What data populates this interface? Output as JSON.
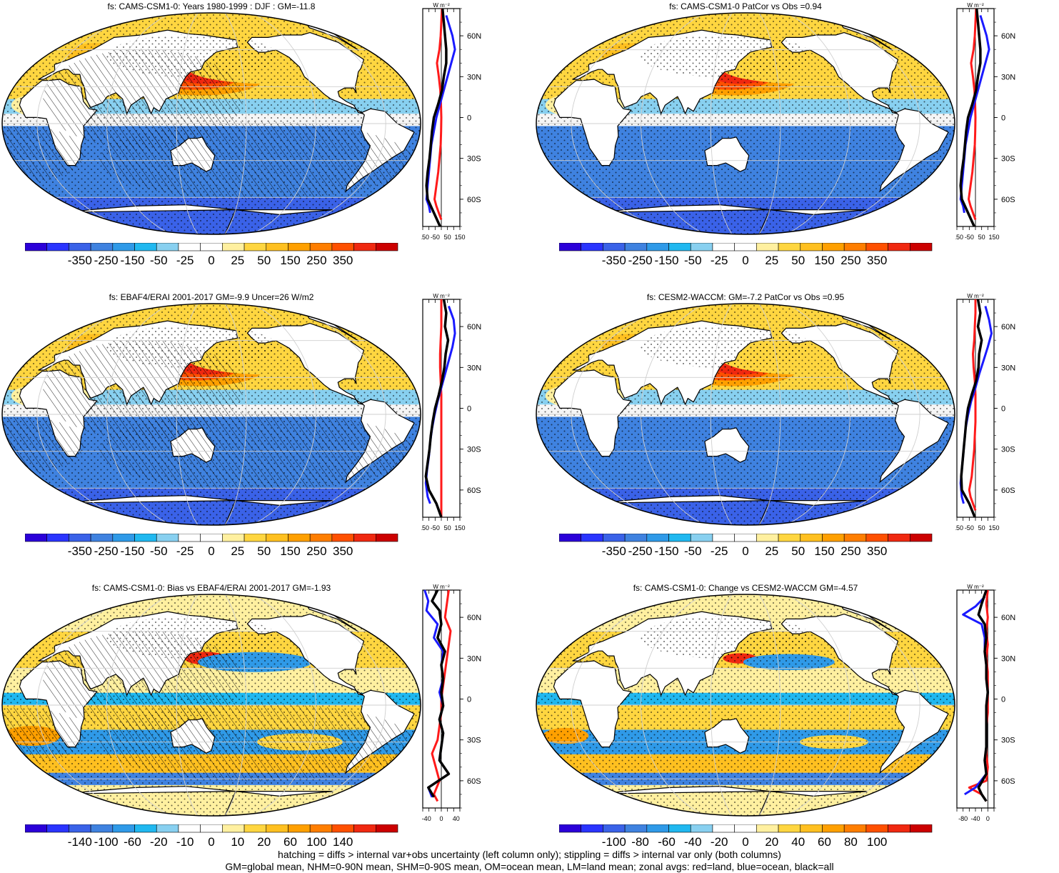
{
  "panels": [
    {
      "title": "fs: CAMS-CSM1-0: Years 1980-1999 : DJF : GM=-11.8",
      "colorbar_labels": [
        "-350",
        "-250",
        "-150",
        "-50",
        "-25",
        "0",
        "25",
        "50",
        "150",
        "250",
        "350"
      ],
      "zonal_xticks": [
        "-150",
        "-50",
        "50",
        "150"
      ],
      "zonal_xrange": [
        -150,
        150
      ],
      "hatching": true,
      "mode": "mean",
      "feature_scale": 1.0
    },
    {
      "title": "fs: CAMS-CSM1-0 PatCor vs Obs =0.94",
      "colorbar_labels": [
        "-350",
        "-250",
        "-150",
        "-50",
        "-25",
        "0",
        "25",
        "50",
        "150",
        "250",
        "350"
      ],
      "zonal_xticks": [
        "-150",
        "-50",
        "50",
        "150"
      ],
      "zonal_xrange": [
        -150,
        150
      ],
      "hatching": false,
      "mode": "mean",
      "feature_scale": 1.0
    },
    {
      "title": "fs: EBAF4/ERAI 2001-2017 GM=-9.9 Uncer=26 W/m2",
      "colorbar_labels": [
        "-350",
        "-250",
        "-150",
        "-50",
        "-25",
        "0",
        "25",
        "50",
        "150",
        "250",
        "350"
      ],
      "zonal_xticks": [
        "-150",
        "-50",
        "50",
        "150"
      ],
      "zonal_xrange": [
        -150,
        150
      ],
      "hatching": true,
      "mode": "mean",
      "feature_scale": 1.0
    },
    {
      "title": "fs: CESM2-WACCM: GM=-7.2 PatCor vs Obs =0.95",
      "colorbar_labels": [
        "-350",
        "-250",
        "-150",
        "-50",
        "-25",
        "0",
        "25",
        "50",
        "150",
        "250",
        "350"
      ],
      "zonal_xticks": [
        "-150",
        "-50",
        "50",
        "150"
      ],
      "zonal_xrange": [
        -150,
        150
      ],
      "hatching": false,
      "mode": "mean",
      "feature_scale": 1.0
    },
    {
      "title": "fs: CAMS-CSM1-0: Bias vs EBAF4/ERAI 2001-2017 GM=-1.93",
      "colorbar_labels": [
        "-140",
        "-100",
        "-60",
        "-20",
        "-10",
        "0",
        "10",
        "20",
        "60",
        "100",
        "140"
      ],
      "zonal_xticks": [
        "-40",
        "0",
        "40"
      ],
      "zonal_xrange": [
        -50,
        50
      ],
      "hatching": true,
      "mode": "diff",
      "feature_scale": 1.0
    },
    {
      "title": "fs: CAMS-CSM1-0: Change vs CESM2-WACCM GM=-4.57",
      "colorbar_labels": [
        "-100",
        "-80",
        "-60",
        "-40",
        "-20",
        "0",
        "20",
        "40",
        "60",
        "80",
        "100"
      ],
      "zonal_xticks": [
        "-80",
        "-40",
        "0"
      ],
      "zonal_xrange": [
        -100,
        20
      ],
      "hatching": false,
      "mode": "diff",
      "feature_scale": 0.8
    }
  ],
  "zonal_header": "W m⁻²",
  "lat_labels": [
    "60N",
    "30N",
    "0",
    "30S",
    "60S"
  ],
  "palette": [
    "#2b00d9",
    "#2a34ff",
    "#3a62e8",
    "#3f82e0",
    "#2f9ae8",
    "#20b8f0",
    "#88d0f0",
    "#ffffff",
    "#ffffff",
    "#fff0a0",
    "#ffd640",
    "#ffc020",
    "#ffa000",
    "#ff7e00",
    "#ff5000",
    "#f02810",
    "#cc0000"
  ],
  "line_colors": {
    "land": "#ff1a1a",
    "ocean": "#1a1aff",
    "all": "#000000"
  },
  "chart_data": [
    {
      "type": "line",
      "title": "fs: CAMS-CSM1-0: Years 1980-1999 : DJF : GM=-11.8",
      "xlabel": "W m⁻²",
      "xlim": [
        -150,
        150
      ],
      "y_tick_labels": [
        "60N",
        "30N",
        "0",
        "30S",
        "60S"
      ],
      "series": [
        {
          "name": "red=land",
          "lat": [
            80,
            70,
            60,
            50,
            40,
            30,
            20,
            10,
            0,
            -10,
            -20,
            -30,
            -40,
            -50,
            -60,
            -65,
            -70,
            -75
          ],
          "values": [
            5,
            0,
            -5,
            -15,
            -35,
            -20,
            -8,
            -3,
            0,
            -2,
            -5,
            -15,
            -25,
            -40,
            -55,
            -40,
            -20,
            0
          ]
        },
        {
          "name": "blue=ocean",
          "lat": [
            75,
            60,
            50,
            40,
            30,
            20,
            10,
            0,
            -10,
            -20,
            -30,
            -40,
            -50,
            -60,
            -65,
            -70
          ],
          "values": [
            40,
            90,
            110,
            80,
            50,
            20,
            -10,
            -40,
            -60,
            -80,
            -90,
            -100,
            -110,
            -120,
            -100,
            -90
          ]
        },
        {
          "name": "black=all",
          "lat": [
            80,
            70,
            60,
            50,
            40,
            30,
            20,
            10,
            0,
            -10,
            -20,
            -30,
            -40,
            -50,
            -60,
            -70,
            -80
          ],
          "values": [
            10,
            20,
            30,
            40,
            40,
            20,
            5,
            -25,
            -60,
            -75,
            -85,
            -95,
            -110,
            -120,
            -110,
            -60,
            -10
          ]
        }
      ]
    },
    {
      "type": "line",
      "title": "fs: CAMS-CSM1-0 PatCor vs Obs =0.94",
      "xlabel": "W m⁻²",
      "xlim": [
        -150,
        150
      ],
      "y_tick_labels": [
        "60N",
        "30N",
        "0",
        "30S",
        "60S"
      ],
      "series": [
        {
          "name": "red=land",
          "lat": [
            80,
            70,
            60,
            50,
            40,
            30,
            20,
            10,
            0,
            -10,
            -20,
            -30,
            -40,
            -50,
            -60,
            -65,
            -70,
            -75
          ],
          "values": [
            5,
            0,
            -5,
            -15,
            -35,
            -20,
            -8,
            -3,
            0,
            -2,
            -5,
            -15,
            -25,
            -40,
            -55,
            -40,
            -20,
            0
          ]
        },
        {
          "name": "blue=ocean",
          "lat": [
            75,
            60,
            50,
            40,
            30,
            20,
            10,
            0,
            -10,
            -20,
            -30,
            -40,
            -50,
            -60,
            -65,
            -70
          ],
          "values": [
            40,
            90,
            110,
            80,
            50,
            20,
            -10,
            -40,
            -60,
            -80,
            -90,
            -100,
            -110,
            -120,
            -100,
            -90
          ]
        },
        {
          "name": "black=all",
          "lat": [
            80,
            70,
            60,
            50,
            40,
            30,
            20,
            10,
            0,
            -10,
            -20,
            -30,
            -40,
            -50,
            -60,
            -70,
            -80
          ],
          "values": [
            10,
            20,
            30,
            40,
            40,
            20,
            5,
            -25,
            -60,
            -75,
            -85,
            -95,
            -110,
            -120,
            -110,
            -60,
            -10
          ]
        }
      ]
    },
    {
      "type": "line",
      "title": "fs: EBAF4/ERAI 2001-2017 GM=-9.9 Uncer=26 W/m2",
      "xlabel": "W m⁻²",
      "xlim": [
        -150,
        150
      ],
      "y_tick_labels": [
        "60N",
        "30N",
        "0",
        "30S",
        "60S"
      ],
      "series": [
        {
          "name": "red=land",
          "lat": [
            80,
            70,
            60,
            50,
            40,
            30,
            20,
            10,
            0,
            -10,
            -20,
            -30,
            -40,
            -50,
            -60,
            -70,
            -80
          ],
          "values": [
            0,
            0,
            0,
            -5,
            -10,
            -10,
            -5,
            0,
            0,
            0,
            0,
            0,
            0,
            0,
            0,
            0,
            0
          ]
        },
        {
          "name": "blue=ocean",
          "lat": [
            75,
            65,
            55,
            45,
            35,
            25,
            15,
            5,
            -5,
            -15,
            -25,
            -35,
            -45,
            -55,
            -65,
            -70
          ],
          "values": [
            60,
            100,
            110,
            90,
            60,
            30,
            0,
            -30,
            -55,
            -75,
            -90,
            -100,
            -115,
            -125,
            -110,
            -90
          ]
        },
        {
          "name": "black=all",
          "lat": [
            80,
            70,
            60,
            50,
            40,
            30,
            20,
            10,
            0,
            -10,
            -20,
            -30,
            -40,
            -50,
            -60,
            -70,
            -80
          ],
          "values": [
            20,
            40,
            30,
            55,
            35,
            25,
            5,
            -20,
            -50,
            -70,
            -85,
            -95,
            -110,
            -125,
            -100,
            -40,
            0
          ]
        }
      ]
    },
    {
      "type": "line",
      "title": "fs: CESM2-WACCM: GM=-7.2 PatCor vs Obs =0.95",
      "xlabel": "W m⁻²",
      "xlim": [
        -150,
        150
      ],
      "y_tick_labels": [
        "60N",
        "30N",
        "0",
        "30S",
        "60S"
      ],
      "series": [
        {
          "name": "red=land",
          "lat": [
            80,
            70,
            60,
            50,
            40,
            30,
            20,
            10,
            0,
            -10,
            -20,
            -30,
            -40,
            -50,
            -60,
            -65,
            -70,
            -75
          ],
          "values": [
            0,
            0,
            -5,
            -10,
            -20,
            -15,
            -5,
            0,
            0,
            0,
            -5,
            -10,
            -20,
            -30,
            -50,
            -40,
            -20,
            0
          ]
        },
        {
          "name": "blue=ocean",
          "lat": [
            75,
            65,
            55,
            45,
            35,
            25,
            15,
            5,
            -5,
            -15,
            -25,
            -35,
            -45,
            -55,
            -65,
            -70
          ],
          "values": [
            80,
            110,
            130,
            100,
            65,
            30,
            0,
            -35,
            -60,
            -80,
            -90,
            -100,
            -110,
            -120,
            -110,
            -95
          ]
        },
        {
          "name": "black=all",
          "lat": [
            80,
            70,
            60,
            50,
            40,
            30,
            20,
            10,
            0,
            -10,
            -20,
            -30,
            -40,
            -50,
            -60,
            -70,
            -80
          ],
          "values": [
            20,
            40,
            20,
            50,
            30,
            25,
            5,
            -30,
            -60,
            -75,
            -85,
            -95,
            -105,
            -115,
            -110,
            -50,
            -5
          ]
        }
      ]
    },
    {
      "type": "line",
      "title": "fs: CAMS-CSM1-0: Bias vs EBAF4/ERAI 2001-2017 GM=-1.93",
      "xlabel": "W m⁻²",
      "xlim": [
        -50,
        50
      ],
      "y_tick_labels": [
        "60N",
        "30N",
        "0",
        "30S",
        "60S"
      ],
      "series": [
        {
          "name": "red=land",
          "lat": [
            80,
            70,
            60,
            50,
            40,
            30,
            20,
            10,
            0,
            -10,
            -20,
            -30,
            -40,
            -50,
            -60,
            -70,
            -75
          ],
          "values": [
            20,
            15,
            10,
            25,
            20,
            15,
            10,
            5,
            0,
            0,
            -5,
            -10,
            -25,
            -15,
            -5,
            -20,
            -10
          ]
        },
        {
          "name": "blue=ocean",
          "lat": [
            80,
            72,
            65,
            55,
            45,
            35,
            25,
            15,
            5,
            -5,
            -15,
            -25,
            -35,
            -45,
            -55,
            -65,
            -72
          ],
          "values": [
            -45,
            -35,
            -40,
            -10,
            -20,
            5,
            0,
            5,
            -5,
            5,
            -5,
            5,
            0,
            -5,
            20,
            -35,
            -25
          ]
        },
        {
          "name": "black=all",
          "lat": [
            80,
            72,
            65,
            55,
            45,
            35,
            25,
            15,
            5,
            -5,
            -15,
            -25,
            -35,
            -45,
            -55,
            -65,
            -72
          ],
          "values": [
            -10,
            -25,
            -5,
            0,
            -10,
            10,
            0,
            5,
            0,
            5,
            -5,
            5,
            0,
            -5,
            20,
            -35,
            -20
          ]
        }
      ]
    },
    {
      "type": "line",
      "title": "fs: CAMS-CSM1-0: Change vs CESM2-WACCM GM=-4.57",
      "xlabel": "W m⁻²",
      "xlim": [
        -100,
        20
      ],
      "y_tick_labels": [
        "60N",
        "30N",
        "0",
        "30S",
        "60S"
      ],
      "series": [
        {
          "name": "red=land",
          "lat": [
            80,
            70,
            60,
            50,
            40,
            30,
            20,
            10,
            0,
            -10,
            -20,
            -30,
            -40,
            -50,
            -60,
            -65,
            -70,
            -75
          ],
          "values": [
            0,
            -5,
            0,
            -5,
            0,
            -5,
            0,
            0,
            0,
            0,
            -5,
            -5,
            -5,
            0,
            -5,
            -60,
            -20,
            -5
          ]
        },
        {
          "name": "blue=ocean",
          "lat": [
            75,
            68,
            62,
            55,
            45,
            35,
            25,
            15,
            5,
            -5,
            -15,
            -25,
            -35,
            -45,
            -55,
            -65,
            -70
          ],
          "values": [
            -10,
            -40,
            -80,
            -20,
            -10,
            -10,
            -5,
            -5,
            0,
            -5,
            -5,
            -5,
            -5,
            -10,
            -5,
            -40,
            -75
          ]
        },
        {
          "name": "black=all",
          "lat": [
            80,
            70,
            62,
            55,
            45,
            35,
            25,
            15,
            5,
            -5,
            -15,
            -25,
            -35,
            -45,
            -55,
            -65,
            -70,
            -75
          ],
          "values": [
            -5,
            -20,
            -30,
            -10,
            -5,
            -10,
            -5,
            -5,
            0,
            -5,
            -5,
            -5,
            -5,
            -10,
            -5,
            -30,
            -20,
            -5
          ]
        }
      ]
    }
  ],
  "footer": {
    "line1": "hatching = diffs > internal var+obs uncertainty (left column only); stippling = diffs > internal var only (both columns)",
    "line2": "GM=global mean, NHM=0-90N mean, SHM=0-90S mean, OM=ocean mean, LM=land mean; zonal avgs: red=land, blue=ocean, black=all"
  }
}
